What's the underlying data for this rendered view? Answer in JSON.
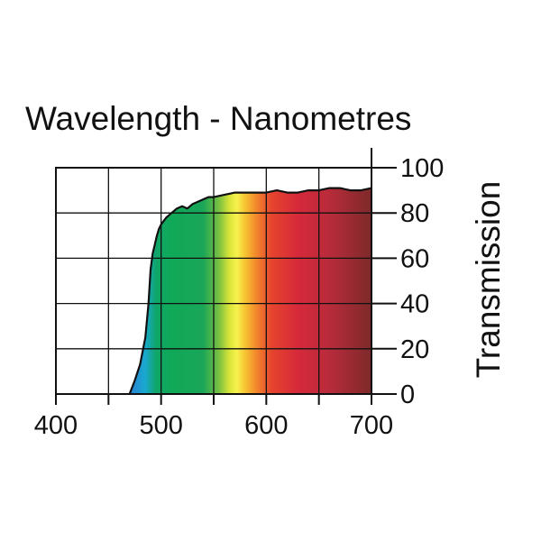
{
  "chart_data": {
    "type": "area",
    "title": "Wavelength - Nanometres",
    "xlabel": "Wavelength - Nanometres",
    "ylabel": "Transmission",
    "xlim": [
      400,
      700
    ],
    "ylim": [
      0,
      100
    ],
    "x_ticks": [
      400,
      500,
      600,
      700
    ],
    "x_tick_labels": [
      "400",
      "500",
      "600",
      "700"
    ],
    "y_ticks": [
      0,
      20,
      40,
      60,
      80,
      100
    ],
    "y_tick_labels": [
      "0",
      "20",
      "40",
      "60",
      "80",
      "100"
    ],
    "grid": true,
    "series": [
      {
        "name": "Transmission",
        "x": [
          470,
          475,
          480,
          485,
          488,
          490,
          492,
          494,
          496,
          498,
          500,
          505,
          510,
          515,
          520,
          525,
          530,
          535,
          540,
          545,
          550,
          560,
          570,
          580,
          590,
          600,
          610,
          620,
          630,
          640,
          650,
          660,
          670,
          680,
          690,
          700
        ],
        "y": [
          0,
          6,
          13,
          25,
          40,
          55,
          62,
          66,
          70,
          73,
          75,
          78,
          80,
          82,
          83,
          82,
          84,
          85,
          86,
          87,
          87,
          88,
          89,
          89,
          89,
          89,
          90,
          89,
          89,
          90,
          90,
          91,
          91,
          90,
          90,
          91
        ]
      }
    ],
    "gradient_stops": [
      {
        "wavelength": 470,
        "color": "#2a7fd4"
      },
      {
        "wavelength": 485,
        "color": "#19a9cf"
      },
      {
        "wavelength": 495,
        "color": "#10a56a"
      },
      {
        "wavelength": 510,
        "color": "#0fa957"
      },
      {
        "wavelength": 540,
        "color": "#1aa658"
      },
      {
        "wavelength": 555,
        "color": "#79c043"
      },
      {
        "wavelength": 565,
        "color": "#d9e537"
      },
      {
        "wavelength": 572,
        "color": "#f6f24d"
      },
      {
        "wavelength": 580,
        "color": "#f7c332"
      },
      {
        "wavelength": 590,
        "color": "#f28a2c"
      },
      {
        "wavelength": 605,
        "color": "#e6442e"
      },
      {
        "wavelength": 630,
        "color": "#d6293a"
      },
      {
        "wavelength": 660,
        "color": "#b82b3b"
      },
      {
        "wavelength": 700,
        "color": "#7d2a2a"
      }
    ]
  }
}
